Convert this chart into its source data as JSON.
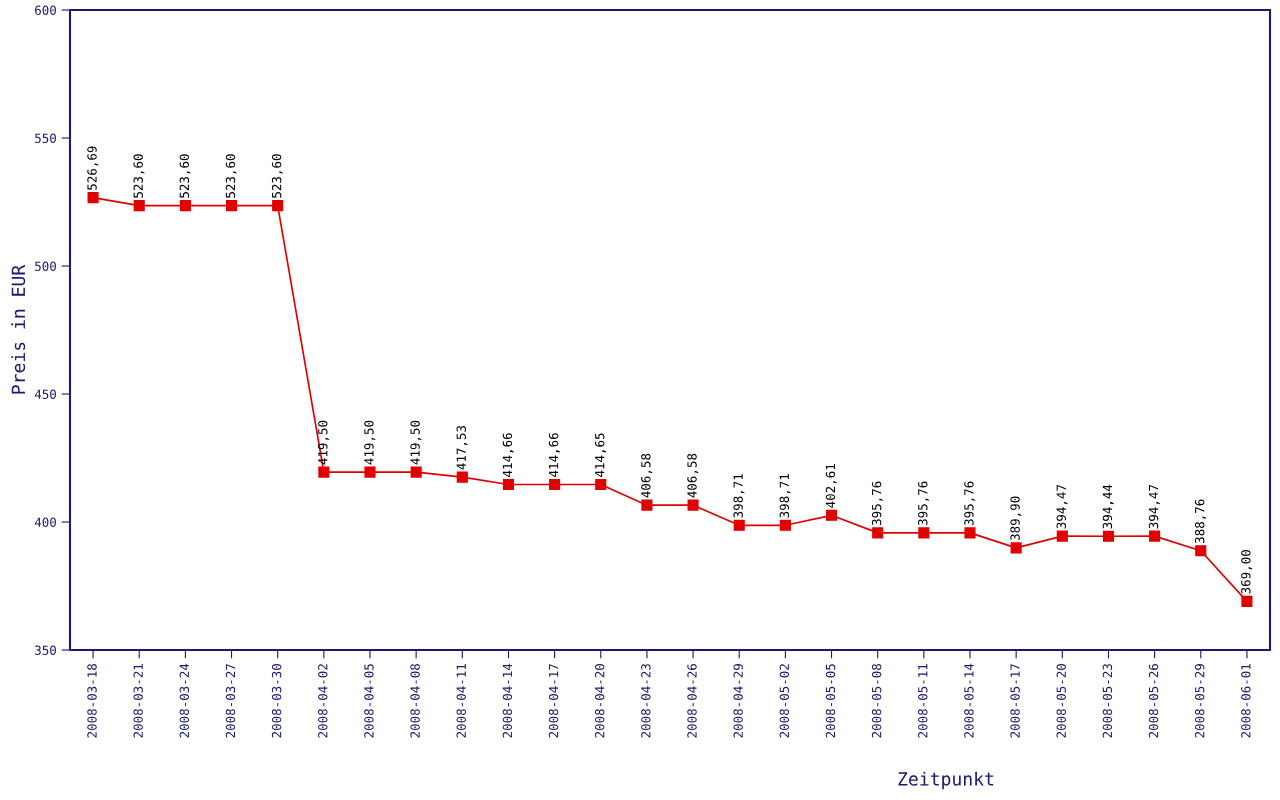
{
  "chart_data": {
    "type": "line",
    "xlabel": "Zeitpunkt",
    "ylabel": "Preis in EUR",
    "categories": [
      "2008-03-18",
      "2008-03-21",
      "2008-03-24",
      "2008-03-27",
      "2008-03-30",
      "2008-04-02",
      "2008-04-05",
      "2008-04-08",
      "2008-04-11",
      "2008-04-14",
      "2008-04-17",
      "2008-04-20",
      "2008-04-23",
      "2008-04-26",
      "2008-04-29",
      "2008-05-02",
      "2008-05-05",
      "2008-05-08",
      "2008-05-11",
      "2008-05-14",
      "2008-05-17",
      "2008-05-20",
      "2008-05-23",
      "2008-05-26",
      "2008-05-29",
      "2008-06-01"
    ],
    "series": [
      {
        "color": "#e00000",
        "values": [
          526.69,
          523.6,
          523.6,
          523.6,
          523.6,
          419.5,
          419.5,
          419.5,
          417.53,
          414.66,
          414.66,
          414.65,
          406.58,
          406.58,
          398.71,
          398.71,
          402.61,
          395.76,
          395.76,
          395.76,
          389.9,
          394.47,
          394.44,
          394.47,
          388.76,
          369.0
        ],
        "value_labels": [
          "526,69",
          "523,60",
          "523,60",
          "523,60",
          "523,60",
          "419,50",
          "419,50",
          "419,50",
          "417,53",
          "414,66",
          "414,66",
          "414,65",
          "406,58",
          "406,58",
          "398,71",
          "398,71",
          "402,61",
          "395,76",
          "395,76",
          "395,76",
          "389,90",
          "394,47",
          "394,44",
          "394,47",
          "388,76",
          "369,00"
        ]
      }
    ],
    "ylim": [
      350,
      600
    ],
    "yticks": [
      350,
      400,
      450,
      500,
      550,
      600
    ],
    "marker": "square",
    "line_style": "solid",
    "grid": false,
    "legend": false
  }
}
